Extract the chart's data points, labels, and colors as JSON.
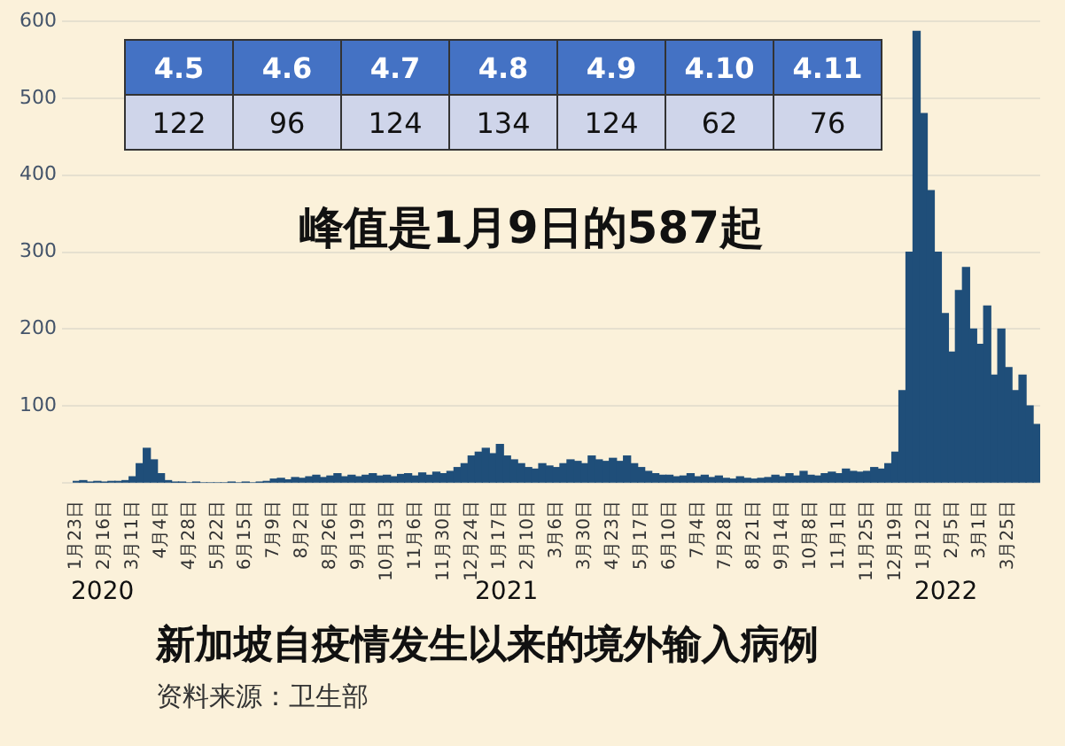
{
  "chart_data": [
    {
      "type": "bar",
      "title": "新加坡自疫情发生以来的境外输入病例",
      "annotations": [
        "峰值是1月9日的587起",
        "2020",
        "2021",
        "2022",
        "资料来源：卫生部",
        "4.5",
        "4.6",
        "4.7",
        "4.8",
        "4.9",
        "4.10",
        "4.11",
        "122",
        "96",
        "124",
        "134",
        "124",
        "62",
        "76"
      ],
      "categories": [
        "1月23日",
        null,
        null,
        null,
        "2月16日",
        null,
        null,
        null,
        "3月11日",
        null,
        null,
        null,
        "4月4日",
        null,
        null,
        null,
        "4月28日",
        null,
        null,
        null,
        "5月22日",
        null,
        null,
        null,
        "6月15日",
        null,
        null,
        null,
        "7月9日",
        null,
        null,
        null,
        "8月2日",
        null,
        null,
        null,
        "8月26日",
        null,
        null,
        null,
        "9月19日",
        null,
        null,
        null,
        "10月13日",
        null,
        null,
        null,
        "11月6日",
        null,
        null,
        null,
        "11月30日",
        null,
        null,
        null,
        "12月24日",
        null,
        null,
        null,
        "1月17日",
        null,
        null,
        null,
        "2月10日",
        null,
        null,
        null,
        "3月6日",
        null,
        null,
        null,
        "3月30日",
        null,
        null,
        null,
        "4月23日",
        null,
        null,
        null,
        "5月17日",
        null,
        null,
        null,
        "6月10日",
        null,
        null,
        null,
        "7月4日",
        null,
        null,
        null,
        "7月28日",
        null,
        null,
        null,
        "8月21日",
        null,
        null,
        null,
        "9月14日",
        null,
        null,
        null,
        "10月8日",
        null,
        null,
        null,
        "11月1日",
        null,
        null,
        null,
        "11月25日",
        null,
        null,
        null,
        "12月19日",
        null,
        null,
        null,
        "1月12日",
        null,
        null,
        null,
        "2月5日",
        null,
        null,
        null,
        "3月1日",
        null,
        null,
        null,
        "3月25日",
        null,
        null,
        null,
        null
      ],
      "values": [
        2,
        3,
        1,
        2,
        1,
        2,
        2,
        3,
        8,
        25,
        45,
        30,
        12,
        3,
        1,
        1,
        0,
        1,
        0,
        0,
        0,
        0,
        1,
        0,
        1,
        0,
        1,
        2,
        5,
        6,
        4,
        7,
        6,
        8,
        10,
        7,
        9,
        12,
        8,
        10,
        8,
        10,
        12,
        9,
        10,
        8,
        11,
        12,
        9,
        13,
        10,
        14,
        12,
        15,
        20,
        25,
        35,
        40,
        45,
        38,
        50,
        35,
        30,
        25,
        20,
        18,
        25,
        22,
        20,
        25,
        30,
        28,
        25,
        35,
        30,
        28,
        32,
        28,
        35,
        25,
        20,
        15,
        12,
        10,
        10,
        8,
        9,
        12,
        8,
        10,
        7,
        9,
        6,
        5,
        8,
        6,
        5,
        6,
        7,
        10,
        8,
        12,
        9,
        15,
        10,
        9,
        12,
        14,
        12,
        18,
        15,
        14,
        15,
        20,
        18,
        25,
        40,
        120,
        300,
        587,
        480,
        380,
        300,
        220,
        170,
        250,
        280,
        200,
        180,
        230,
        140,
        200,
        150,
        120,
        140,
        100,
        76
      ],
      "color": "#1f4e79",
      "ylim": [
        0,
        600
      ],
      "yticks": [
        {
          "value": 0,
          "label": null
        },
        100,
        200,
        300,
        400,
        500,
        600
      ],
      "grid": "y"
    }
  ]
}
